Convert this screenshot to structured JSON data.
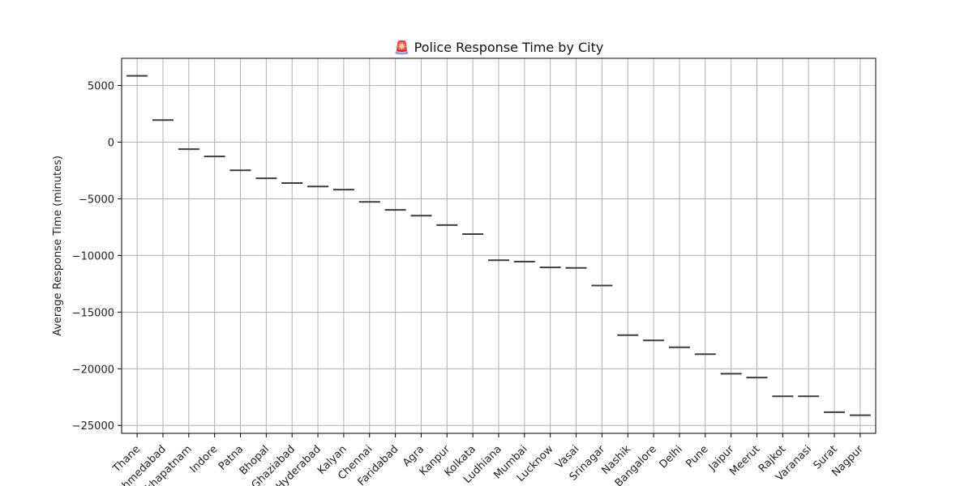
{
  "chart_data": {
    "type": "box",
    "title": "🚨 Police Response Time by City",
    "xlabel": "",
    "ylabel": "Average Response Time (minutes)",
    "ylim": [
      -25700,
      7400
    ],
    "grid": true,
    "yticks": [
      5000,
      0,
      -5000,
      -10000,
      -15000,
      -20000,
      -25000
    ],
    "ytick_labels": [
      "5000",
      "0",
      "−5000",
      "−10000",
      "−15000",
      "−20000",
      "−25000"
    ],
    "categories": [
      "Thane",
      "Ahmedabad",
      "Visakhapatnam",
      "Indore",
      "Patna",
      "Bhopal",
      "Ghaziabad",
      "Hyderabad",
      "Kalyan",
      "Chennai",
      "Faridabad",
      "Agra",
      "Kanpur",
      "Kolkata",
      "Ludhiana",
      "Mumbai",
      "Lucknow",
      "Vasai",
      "Srinagar",
      "Nashik",
      "Bangalore",
      "Delhi",
      "Pune",
      "Jaipur",
      "Meerut",
      "Rajkot",
      "Varanasi",
      "Surat",
      "Nagpur"
    ],
    "values": [
      5850,
      1950,
      -620,
      -1260,
      -2480,
      -3190,
      -3610,
      -3910,
      -4190,
      -5270,
      -5980,
      -6490,
      -7320,
      -8110,
      -10420,
      -10540,
      -11050,
      -11100,
      -12650,
      -17030,
      -17500,
      -18100,
      -18710,
      -20440,
      -20780,
      -22430,
      -22430,
      -23830,
      -24100
    ]
  }
}
